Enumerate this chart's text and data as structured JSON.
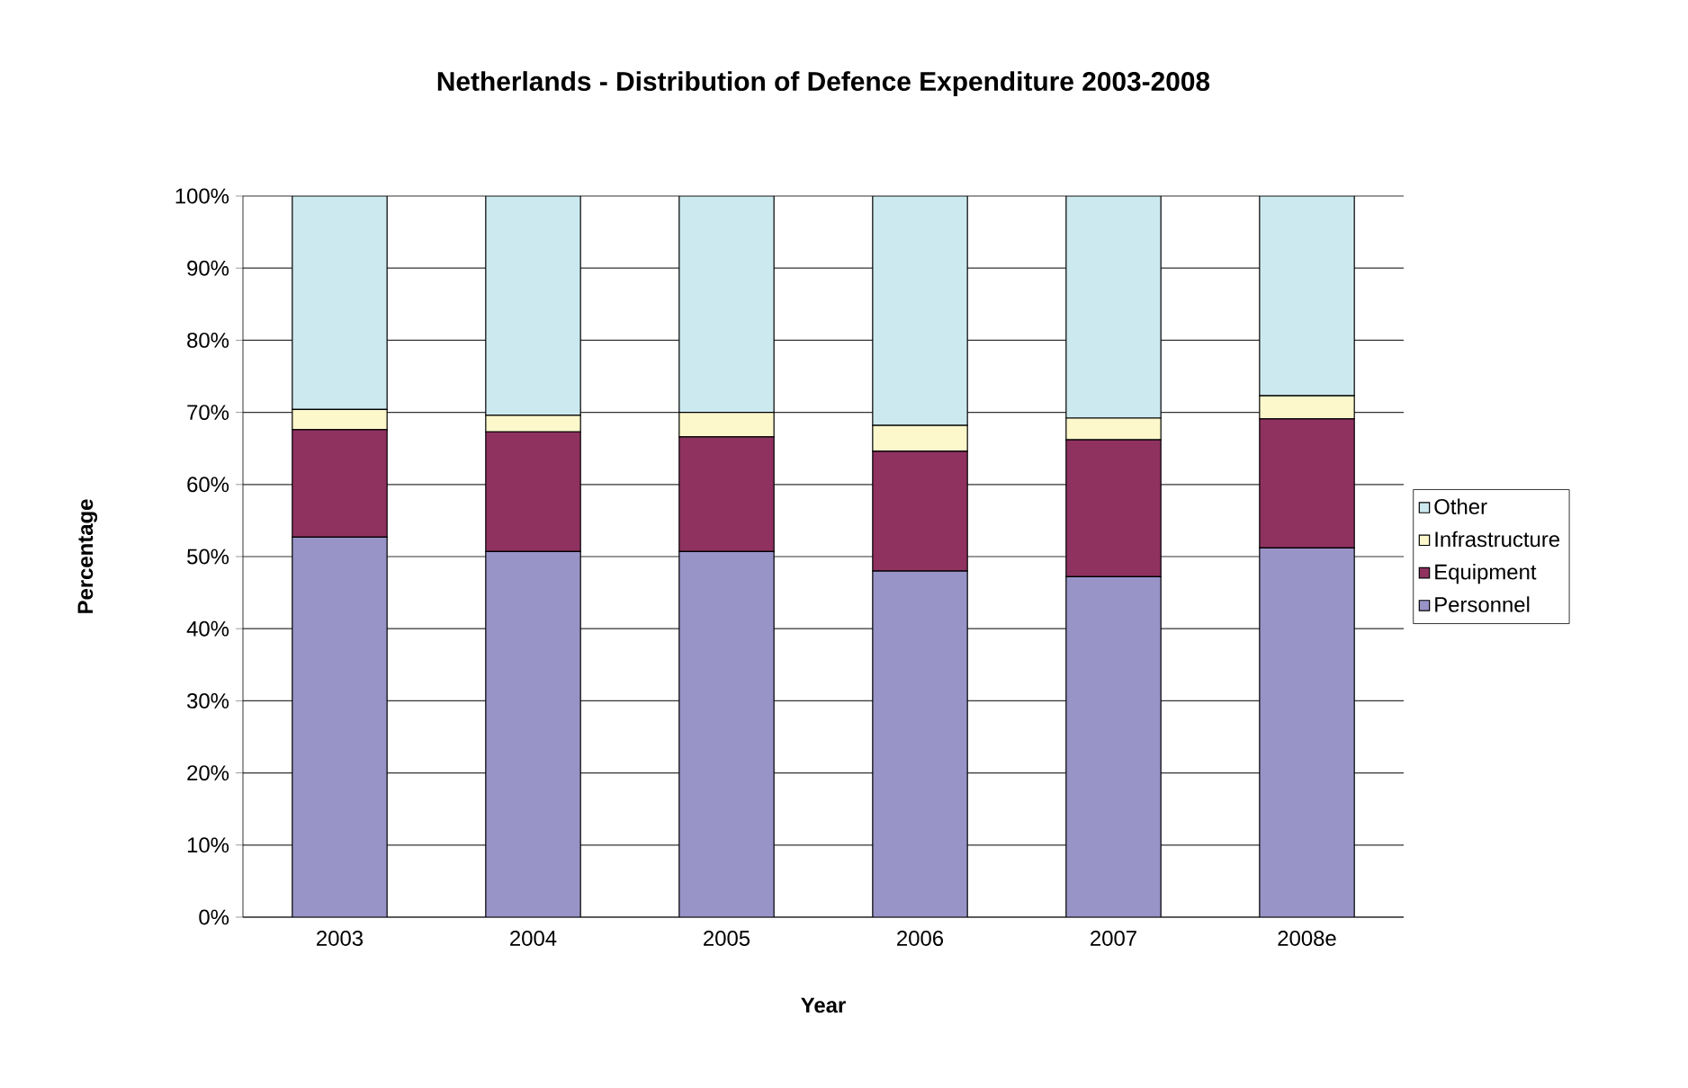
{
  "chart_data": {
    "type": "bar",
    "title": "Netherlands - Distribution of Defence Expenditure 2003-2008",
    "xlabel": "Year",
    "ylabel": "Percentage",
    "categories": [
      "2003",
      "2004",
      "2005",
      "2006",
      "2007",
      "2008e"
    ],
    "stacked": true,
    "series": [
      {
        "name": "Personnel",
        "color": "#9894c8",
        "values": [
          52.7,
          50.7,
          50.7,
          48.0,
          47.2,
          51.2
        ]
      },
      {
        "name": "Equipment",
        "color": "#8f3260",
        "values": [
          14.9,
          16.6,
          15.9,
          16.6,
          19.0,
          17.9
        ]
      },
      {
        "name": "Infrastructure",
        "color": "#fcf8cc",
        "values": [
          2.8,
          2.3,
          3.4,
          3.6,
          3.0,
          3.2
        ]
      },
      {
        "name": "Other",
        "color": "#cce9ef",
        "values": [
          29.6,
          30.4,
          30.0,
          31.8,
          30.8,
          27.7
        ]
      }
    ],
    "ylim": [
      0,
      100
    ],
    "yticks": [
      {
        "value": 0,
        "label": "0%"
      },
      {
        "value": 10,
        "label": "10%"
      },
      {
        "value": 20,
        "label": "20%"
      },
      {
        "value": 30,
        "label": "30%"
      },
      {
        "value": 40,
        "label": "40%"
      },
      {
        "value": 50,
        "label": "50%"
      },
      {
        "value": 60,
        "label": "60%"
      },
      {
        "value": 70,
        "label": "70%"
      },
      {
        "value": 80,
        "label": "80%"
      },
      {
        "value": 90,
        "label": "90%"
      },
      {
        "value": 100,
        "label": "100%"
      }
    ],
    "grid": "y",
    "legend": "right"
  }
}
